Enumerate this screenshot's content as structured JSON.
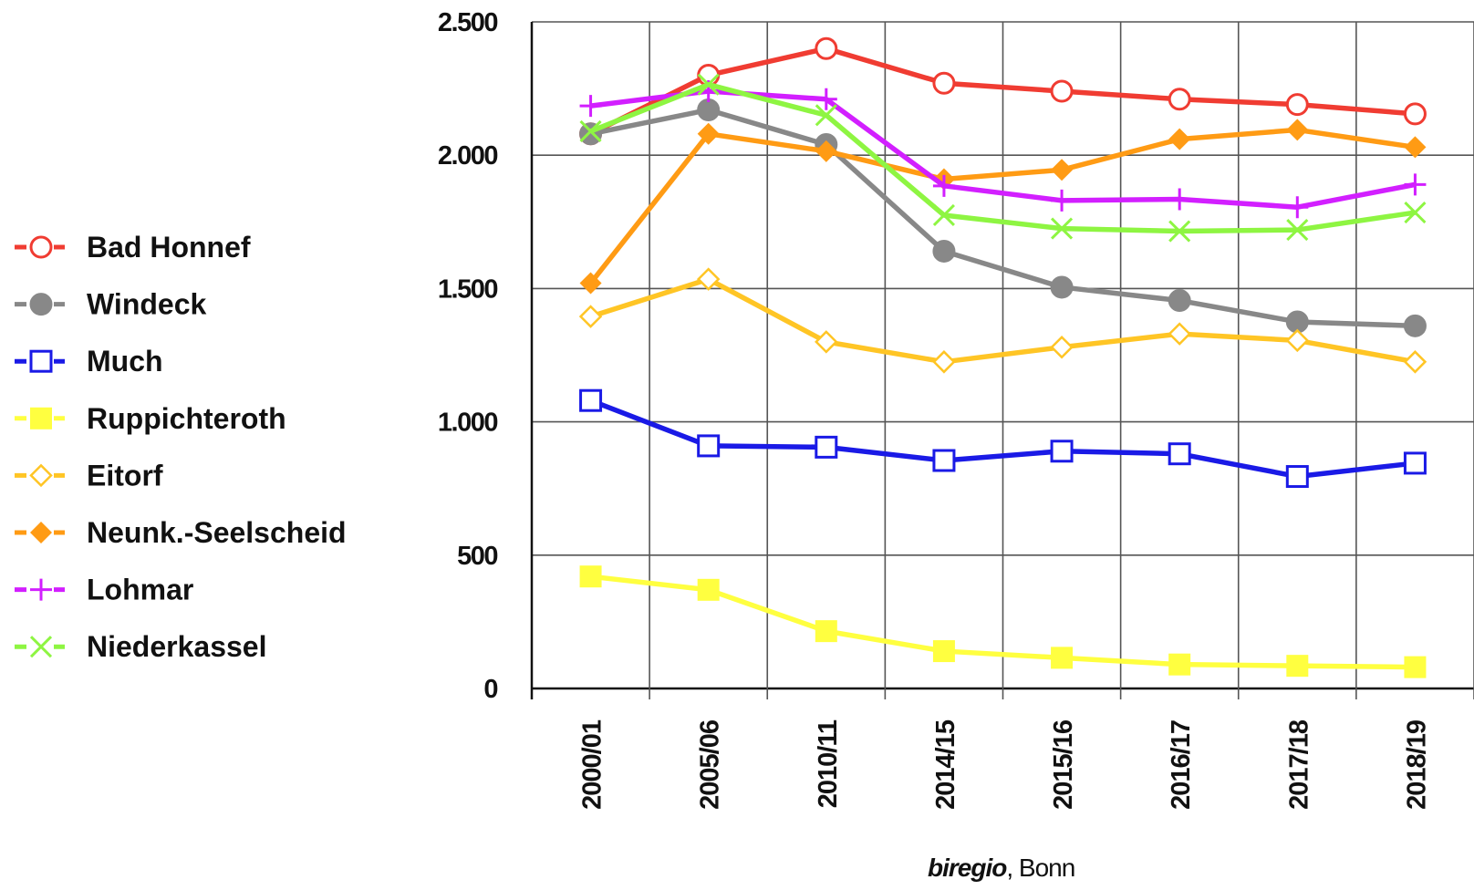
{
  "chart_data": {
    "type": "line",
    "categories": [
      "2000/01",
      "2005/06",
      "2010/11",
      "2014/15",
      "2015/16",
      "2016/17",
      "2017/18",
      "2018/19"
    ],
    "ylim": [
      0,
      2500
    ],
    "yticks": [
      0,
      500,
      1000,
      1500,
      2000,
      2500
    ],
    "ytick_labels": [
      "0",
      "500",
      "1.000",
      "1.500",
      "2.000",
      "2.500"
    ],
    "grid": true,
    "legend_position": "left",
    "source": {
      "italic": "biregio",
      "rest": ", Bonn"
    },
    "series": [
      {
        "name": "Bad Honnef",
        "color": "#f03c32",
        "marker": "circle-open",
        "values": [
          2080,
          2300,
          2400,
          2270,
          2240,
          2210,
          2190,
          2155
        ]
      },
      {
        "name": "Windeck",
        "color": "#888888",
        "marker": "circle-filled",
        "values": [
          2080,
          2170,
          2040,
          1640,
          1505,
          1455,
          1375,
          1360
        ]
      },
      {
        "name": "Much",
        "color": "#1a1ae6",
        "marker": "square-open",
        "values": [
          1080,
          910,
          905,
          855,
          890,
          880,
          795,
          845
        ]
      },
      {
        "name": "Ruppichteroth",
        "color": "#ffff40",
        "marker": "square-filled",
        "values": [
          420,
          370,
          215,
          140,
          115,
          90,
          85,
          80
        ]
      },
      {
        "name": "Eitorf",
        "color": "#ffc525",
        "marker": "diamond-open",
        "values": [
          1395,
          1535,
          1300,
          1225,
          1280,
          1330,
          1305,
          1225
        ]
      },
      {
        "name": "Neunk.-Seelscheid",
        "color": "#ff9b14",
        "marker": "diamond-filled",
        "values": [
          1520,
          2080,
          2015,
          1910,
          1945,
          2060,
          2095,
          2030
        ]
      },
      {
        "name": "Lohmar",
        "color": "#d21fff",
        "marker": "plus",
        "values": [
          2185,
          2240,
          2210,
          1885,
          1830,
          1835,
          1805,
          1890
        ]
      },
      {
        "name": "Niederkassel",
        "color": "#8ef542",
        "marker": "cross",
        "values": [
          2090,
          2265,
          2150,
          1775,
          1725,
          1715,
          1720,
          1785
        ]
      }
    ]
  }
}
